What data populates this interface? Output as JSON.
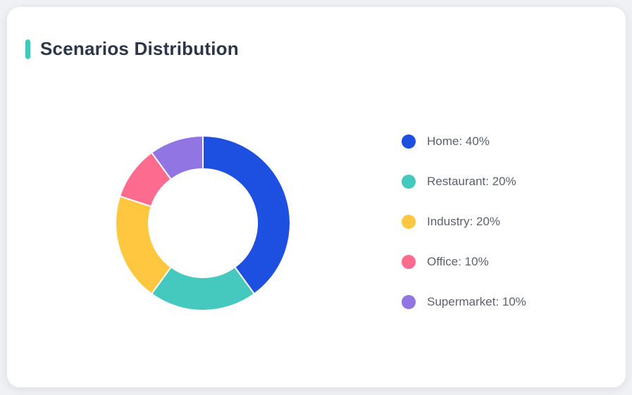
{
  "card": {
    "title": "Scenarios Distribution",
    "accent_color": "#3EC8BE",
    "background": "#ffffff",
    "page_background": "#eff1f4",
    "title_color": "#2B3648"
  },
  "chart_data": {
    "type": "pie",
    "subtype": "donut",
    "title": "Scenarios Distribution",
    "labels": [
      "Home",
      "Restaurant",
      "Industry",
      "Office",
      "Supermarket"
    ],
    "values": [
      40,
      20,
      20,
      10,
      10
    ],
    "unit": "%",
    "colors": [
      "#1D4FE1",
      "#45C8BE",
      "#FFC640",
      "#FD6C8E",
      "#9175E3"
    ],
    "start_angle_deg": 0,
    "direction": "clockwise",
    "inner_radius_ratio": 0.62,
    "separator_color": "#ffffff",
    "legend_position": "right",
    "legend_entries": [
      "Home: 40%",
      "Restaurant: 20%",
      "Industry: 20%",
      "Office: 10%",
      "Supermarket: 10%"
    ],
    "legend_text_color": "#5A6170"
  }
}
